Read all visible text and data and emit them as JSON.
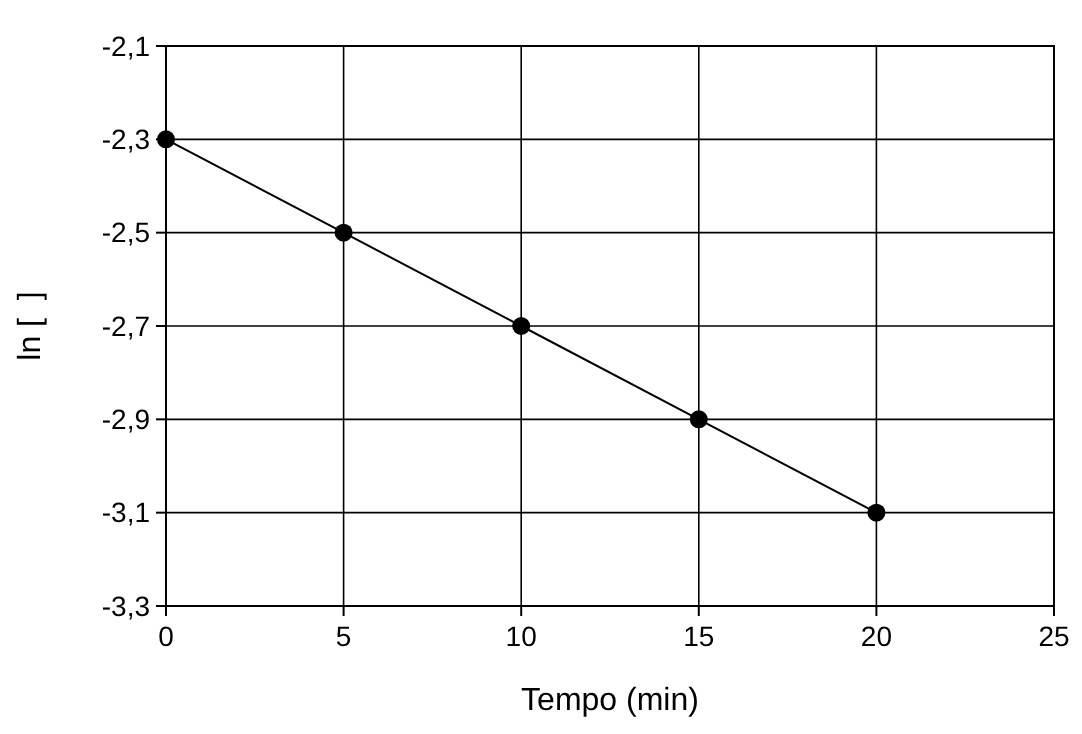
{
  "chart_data": {
    "type": "line",
    "xlabel": "Tempo (min)",
    "ylabel": "ln [  ]",
    "x": [
      0,
      5,
      10,
      15,
      20
    ],
    "series": [
      {
        "color": "#000000",
        "values": [
          -2.3,
          -2.5,
          -2.7,
          -2.9,
          -3.1
        ]
      }
    ],
    "xlim": [
      0,
      25
    ],
    "xticks": [
      0,
      5,
      10,
      15,
      20,
      25
    ],
    "ylim": [
      -3.3,
      -2.1
    ],
    "yticks": [
      {
        "value": -3.3,
        "label": "-3,3"
      },
      {
        "value": -3.1,
        "label": "-3,1"
      },
      {
        "value": -2.9,
        "label": "-2,9"
      },
      {
        "value": -2.7,
        "label": "-2,7"
      },
      {
        "value": -2.5,
        "label": "-2,5"
      },
      {
        "value": -2.3,
        "label": "-2,3"
      },
      {
        "value": -2.1,
        "label": "-2,1"
      }
    ],
    "grid": true,
    "marker": "circle",
    "line_style": "solid"
  }
}
